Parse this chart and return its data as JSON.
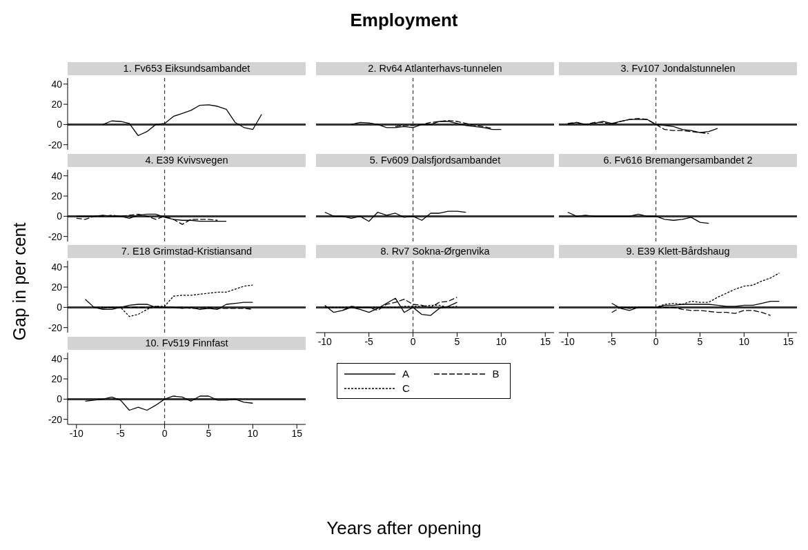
{
  "chart_data": [
    {
      "type": "line",
      "title": "1. Fv653 Eiksundsambandet",
      "annotations": [
        "Employment"
      ],
      "ylabel": "Gap in per cent",
      "xlabel": "Years after opening",
      "xlim": [
        -11,
        16
      ],
      "ylim": [
        -25,
        46
      ],
      "xticks": [
        -10,
        -5,
        0,
        5,
        10,
        15
      ],
      "yticks": [
        -20,
        0,
        20,
        40
      ],
      "tick_labels": "y",
      "ref_lines": [
        {
          "axis": "y",
          "value": 0,
          "color": "#333333",
          "line_style": "solid"
        },
        {
          "axis": "x",
          "value": 0,
          "color": "#333333",
          "line_style": "dashed"
        }
      ],
      "series": [
        {
          "color": "#000000",
          "line_style": "solid",
          "x": [
            -7,
            -6,
            -5,
            -4,
            -3,
            -2,
            -1,
            0,
            1,
            2,
            3,
            4,
            5,
            6,
            7,
            8,
            9,
            10,
            11
          ],
          "values": [
            0,
            3.5,
            3,
            1,
            -11,
            -7,
            0,
            1,
            8,
            11,
            14,
            19,
            19.5,
            18,
            15,
            2,
            -3,
            -5,
            10
          ]
        }
      ]
    },
    {
      "type": "line",
      "title": "2. Rv64 Atlanterhavs-tunnelen",
      "xlim": [
        -11,
        16
      ],
      "ylim": [
        -25,
        46
      ],
      "xticks": [
        -10,
        -5,
        0,
        5,
        10,
        15
      ],
      "yticks": [
        -20,
        0,
        20,
        40
      ],
      "tick_labels": false,
      "ref_lines": [
        {
          "axis": "y",
          "value": 0,
          "color": "#333333",
          "line_style": "solid"
        },
        {
          "axis": "x",
          "value": 0,
          "color": "#333333",
          "line_style": "dashed"
        }
      ],
      "series": [
        {
          "color": "#000000",
          "line_style": "solid",
          "x": [
            -7,
            -6,
            -5,
            -4,
            -3,
            -2,
            -1,
            0,
            1,
            2,
            3,
            4,
            5,
            6,
            7,
            8,
            9,
            10
          ],
          "values": [
            0,
            2,
            1.5,
            0,
            -3,
            -3,
            -2,
            -3,
            0,
            0,
            3,
            3,
            1,
            -1,
            -2,
            -3,
            -5,
            -5
          ]
        },
        {
          "color": "#000000",
          "line_style": "dashed",
          "x": [
            -2,
            -1,
            0,
            1,
            2,
            3,
            4,
            5,
            6,
            7,
            8,
            9
          ],
          "values": [
            -2,
            -1,
            -1,
            0,
            2,
            3,
            4,
            3,
            1,
            -1,
            -2,
            -4
          ]
        }
      ]
    },
    {
      "type": "line",
      "title": "3. Fv107 Jondalstunnelen",
      "xlim": [
        -11,
        16
      ],
      "ylim": [
        -25,
        46
      ],
      "xticks": [
        -10,
        -5,
        0,
        5,
        10,
        15
      ],
      "yticks": [
        -20,
        0,
        20,
        40
      ],
      "tick_labels": false,
      "ref_lines": [
        {
          "axis": "y",
          "value": 0,
          "color": "#333333",
          "line_style": "solid"
        },
        {
          "axis": "x",
          "value": 0,
          "color": "#333333",
          "line_style": "dashed"
        }
      ],
      "series": [
        {
          "color": "#000000",
          "line_style": "solid",
          "x": [
            -10,
            -9,
            -8,
            -7,
            -6,
            -5,
            -4,
            -3,
            -2,
            -1,
            0,
            1,
            2,
            3,
            4,
            5,
            6,
            7
          ],
          "values": [
            0,
            2,
            0,
            1,
            3,
            1,
            3,
            5,
            5,
            5,
            0,
            -1,
            -2,
            -5,
            -6,
            -8,
            -7,
            -4
          ]
        },
        {
          "color": "#000000",
          "line_style": "dashed",
          "x": [
            -10,
            -9,
            -8,
            -7,
            -6,
            -5,
            -4,
            -3,
            -2,
            -1,
            0,
            1,
            2,
            3,
            4,
            5,
            6
          ],
          "values": [
            1,
            2,
            0,
            2,
            2,
            0,
            3,
            5,
            6,
            5,
            0,
            -5,
            -6,
            -6,
            -7,
            -8,
            -9
          ]
        }
      ]
    },
    {
      "type": "line",
      "title": "4. E39 Kvivsvegen",
      "xlim": [
        -11,
        16
      ],
      "ylim": [
        -25,
        46
      ],
      "xticks": [
        -10,
        -5,
        0,
        5,
        10,
        15
      ],
      "yticks": [
        -20,
        0,
        20,
        40
      ],
      "tick_labels": "y",
      "ref_lines": [
        {
          "axis": "y",
          "value": 0,
          "color": "#333333",
          "line_style": "solid"
        },
        {
          "axis": "x",
          "value": 0,
          "color": "#333333",
          "line_style": "dashed"
        }
      ],
      "series": [
        {
          "color": "#000000",
          "line_style": "solid",
          "x": [
            -10,
            -9,
            -8,
            -7,
            -6,
            -5,
            -4,
            -3,
            -2,
            -1,
            0,
            1,
            2,
            3,
            4,
            5,
            6,
            7
          ],
          "values": [
            0,
            0,
            0,
            1,
            0,
            0,
            -2,
            1,
            2,
            2,
            -1,
            -3,
            -4,
            -4,
            -5,
            -5,
            -5,
            -5
          ]
        },
        {
          "color": "#000000",
          "line_style": "dashed",
          "x": [
            -10,
            -9,
            -8,
            -7,
            -6,
            -5,
            -4,
            -3,
            -2,
            -1,
            0,
            1,
            2,
            3,
            4,
            5,
            6
          ],
          "values": [
            -2,
            -3,
            0,
            0,
            1,
            0,
            1,
            2,
            0,
            -3,
            0,
            -3,
            -8,
            -3,
            -3,
            -3,
            -4
          ]
        }
      ]
    },
    {
      "type": "line",
      "title": "5. Fv609 Dalsfjordsambandet",
      "xlim": [
        -11,
        16
      ],
      "ylim": [
        -25,
        46
      ],
      "xticks": [
        -10,
        -5,
        0,
        5,
        10,
        15
      ],
      "yticks": [
        -20,
        0,
        20,
        40
      ],
      "tick_labels": false,
      "ref_lines": [
        {
          "axis": "y",
          "value": 0,
          "color": "#333333",
          "line_style": "solid"
        },
        {
          "axis": "x",
          "value": 0,
          "color": "#333333",
          "line_style": "dashed"
        }
      ],
      "series": [
        {
          "color": "#000000",
          "line_style": "solid",
          "x": [
            -10,
            -9,
            -8,
            -7,
            -6,
            -5,
            -4,
            -3,
            -2,
            -1,
            0,
            1,
            2,
            3,
            4,
            5,
            6
          ],
          "values": [
            4,
            0,
            0,
            -2,
            0,
            -5,
            4,
            1,
            3,
            -1,
            0,
            -4,
            3,
            3,
            5,
            5,
            4
          ]
        }
      ]
    },
    {
      "type": "line",
      "title": "6. Fv616 Bremangersambandet 2",
      "xlim": [
        -11,
        16
      ],
      "ylim": [
        -25,
        46
      ],
      "xticks": [
        -10,
        -5,
        0,
        5,
        10,
        15
      ],
      "yticks": [
        -20,
        0,
        20,
        40
      ],
      "tick_labels": false,
      "ref_lines": [
        {
          "axis": "y",
          "value": 0,
          "color": "#333333",
          "line_style": "solid"
        },
        {
          "axis": "x",
          "value": 0,
          "color": "#333333",
          "line_style": "dashed"
        }
      ],
      "series": [
        {
          "color": "#000000",
          "line_style": "solid",
          "x": [
            -10,
            -9,
            -8,
            -7,
            -6,
            -5,
            -4,
            -3,
            -2,
            -1,
            0,
            1,
            2,
            3,
            4,
            5,
            6
          ],
          "values": [
            4,
            0,
            1,
            0,
            0,
            0,
            0,
            0,
            2,
            0,
            0,
            -3,
            -4,
            -3,
            -1,
            -6,
            -7
          ]
        }
      ]
    },
    {
      "type": "line",
      "title": "7. E18 Grimstad-Kristiansand",
      "xlim": [
        -11,
        16
      ],
      "ylim": [
        -25,
        46
      ],
      "xticks": [
        -10,
        -5,
        0,
        5,
        10,
        15
      ],
      "yticks": [
        -20,
        0,
        20,
        40
      ],
      "tick_labels": "y",
      "ref_lines": [
        {
          "axis": "y",
          "value": 0,
          "color": "#333333",
          "line_style": "solid"
        },
        {
          "axis": "x",
          "value": 0,
          "color": "#333333",
          "line_style": "dashed"
        }
      ],
      "series": [
        {
          "color": "#000000",
          "line_style": "solid",
          "x": [
            -9,
            -8,
            -7,
            -6,
            -5,
            -4,
            -3,
            -2,
            -1,
            0,
            1,
            2,
            3,
            4,
            5,
            6,
            7,
            8,
            9,
            10
          ],
          "values": [
            8,
            0,
            -2,
            -2,
            0,
            2,
            3,
            3,
            0,
            0,
            0,
            -1,
            0,
            -2,
            -1,
            -2,
            3,
            4,
            5,
            5
          ]
        },
        {
          "color": "#000000",
          "line_style": "dashed",
          "x": [
            -8,
            -7,
            -6,
            -5,
            -4,
            -3,
            -2,
            -1,
            0,
            1,
            2,
            3,
            4,
            5,
            6,
            7,
            8,
            9,
            10
          ],
          "values": [
            0,
            -1,
            0,
            0,
            0,
            0,
            0,
            1,
            0,
            0,
            0,
            -1,
            -1,
            0,
            -1,
            -1,
            -1,
            -1,
            -2
          ]
        },
        {
          "color": "#000000",
          "line_style": "dotted",
          "x": [
            -8,
            -7,
            -6,
            -5,
            -4,
            -3,
            -2,
            -1,
            0,
            1,
            2,
            3,
            4,
            5,
            6,
            7,
            8,
            9,
            10
          ],
          "values": [
            0,
            0,
            0,
            0,
            -9,
            -7,
            -2,
            1,
            1,
            11,
            12,
            12,
            13,
            14,
            15,
            15,
            18,
            21,
            22
          ]
        }
      ]
    },
    {
      "type": "line",
      "title": "8. Rv7 Sokna-Ørgenvika",
      "xlim": [
        -11,
        16
      ],
      "ylim": [
        -25,
        46
      ],
      "xticks": [
        -10,
        -5,
        0,
        5,
        10,
        15
      ],
      "yticks": [
        -20,
        0,
        20,
        40
      ],
      "tick_labels": "x",
      "legend": "bottom",
      "ref_lines": [
        {
          "axis": "y",
          "value": 0,
          "color": "#333333",
          "line_style": "solid"
        },
        {
          "axis": "x",
          "value": 0,
          "color": "#333333",
          "line_style": "dashed"
        }
      ],
      "series": [
        {
          "name": "A",
          "color": "#000000",
          "line_style": "solid",
          "x": [
            -10,
            -9,
            -8,
            -7,
            -6,
            -5,
            -4,
            -3,
            -2,
            -1,
            0,
            1,
            2,
            3,
            4,
            5
          ],
          "values": [
            2,
            -5,
            -3,
            0,
            -2,
            -5,
            -1,
            4,
            9,
            -5,
            0,
            -7,
            -8,
            -1,
            1,
            5
          ]
        },
        {
          "name": "B",
          "color": "#000000",
          "line_style": "dashed",
          "x": [
            -8,
            -7,
            -6,
            -5,
            -4,
            -3,
            -2,
            -1,
            0,
            1,
            2,
            3,
            4,
            5
          ],
          "values": [
            -3,
            1,
            0,
            0,
            -3,
            3,
            5,
            8,
            3,
            2,
            0,
            5,
            6,
            10
          ]
        },
        {
          "name": "C",
          "color": "#000000",
          "line_style": "dotted",
          "x": [
            -10,
            -9,
            -8,
            -7,
            -6,
            -5,
            -4,
            -3,
            -2,
            -1,
            0,
            1,
            2,
            3,
            4,
            5
          ],
          "values": [
            0,
            0,
            0,
            0,
            0,
            0,
            0,
            0,
            0,
            1,
            1,
            1,
            2,
            2,
            0,
            1
          ]
        }
      ]
    },
    {
      "type": "line",
      "title": "9. E39 Klett-Bårdshaug",
      "xlim": [
        -11,
        16
      ],
      "ylim": [
        -25,
        46
      ],
      "xticks": [
        -10,
        -5,
        0,
        5,
        10,
        15
      ],
      "yticks": [
        -20,
        0,
        20,
        40
      ],
      "tick_labels": "x",
      "ref_lines": [
        {
          "axis": "y",
          "value": 0,
          "color": "#333333",
          "line_style": "solid"
        },
        {
          "axis": "x",
          "value": 0,
          "color": "#333333",
          "line_style": "dashed"
        }
      ],
      "series": [
        {
          "color": "#000000",
          "line_style": "solid",
          "x": [
            -5,
            -4,
            -3,
            -2,
            -1,
            0,
            1,
            2,
            3,
            4,
            5,
            6,
            7,
            8,
            9,
            10,
            11,
            12,
            13,
            14
          ],
          "values": [
            4,
            -1,
            -3,
            0,
            0,
            0,
            2,
            2,
            3,
            3,
            3,
            3,
            2,
            1,
            1,
            2,
            2,
            4,
            6,
            6
          ]
        },
        {
          "color": "#000000",
          "line_style": "dashed",
          "x": [
            -5,
            -4,
            -3,
            -2,
            -1,
            0,
            1,
            2,
            3,
            4,
            5,
            6,
            7,
            8,
            9,
            10,
            11,
            12,
            13
          ],
          "values": [
            -5,
            0,
            -1,
            0,
            0,
            0,
            0,
            0,
            -2,
            -3,
            -3,
            -4,
            -5,
            -5,
            -6,
            -3,
            -3,
            -5,
            -8
          ]
        },
        {
          "color": "#000000",
          "line_style": "dotted",
          "x": [
            -4,
            -3,
            -2,
            -1,
            0,
            1,
            2,
            3,
            4,
            5,
            6,
            7,
            8,
            9,
            10,
            11,
            12,
            13,
            14
          ],
          "values": [
            0,
            0,
            0,
            0,
            0,
            3,
            4,
            3,
            6,
            5,
            5,
            10,
            14,
            18,
            21,
            22,
            26,
            29,
            34
          ]
        }
      ]
    },
    {
      "type": "line",
      "title": "10. Fv519 Finnfast",
      "xlim": [
        -11,
        16
      ],
      "ylim": [
        -25,
        46
      ],
      "xticks": [
        -10,
        -5,
        0,
        5,
        10,
        15
      ],
      "yticks": [
        -20,
        0,
        20,
        40
      ],
      "ref_lines": [
        {
          "axis": "y",
          "value": 0,
          "color": "#333333",
          "line_style": "solid"
        },
        {
          "axis": "x",
          "value": 0,
          "color": "#333333",
          "line_style": "dashed"
        }
      ],
      "series": [
        {
          "color": "#000000",
          "line_style": "solid",
          "x": [
            -9,
            -8,
            -7,
            -6,
            -5,
            -4,
            -3,
            -2,
            -1,
            0,
            1,
            2,
            3,
            4,
            5,
            6,
            7,
            8,
            9,
            10
          ],
          "values": [
            -2,
            -1,
            0,
            2,
            -1,
            -11,
            -8,
            -11,
            -6,
            0,
            3,
            2,
            -2,
            3,
            3,
            -1,
            -1,
            0,
            -3,
            -4
          ]
        }
      ]
    }
  ]
}
